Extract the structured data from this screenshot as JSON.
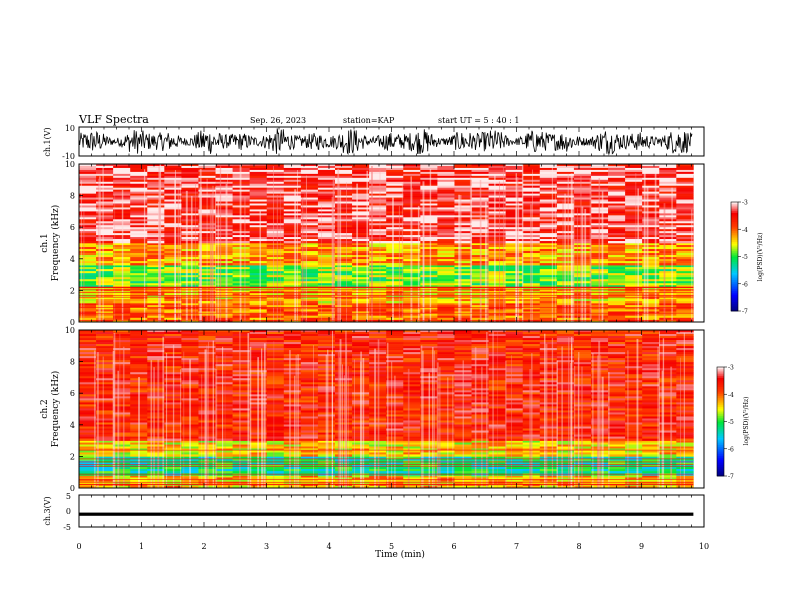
{
  "header": {
    "title": "VLF Spectra",
    "date": "Sep. 26, 2023",
    "station": "station=KAP",
    "start_ut": "start UT =  5 : 40 : 1"
  },
  "chart_data": [
    {
      "type": "line",
      "name": "ch1-waveform",
      "ylabel": "ch.1(V)",
      "ylim": [
        -10,
        10
      ],
      "yticks": [
        "10",
        "-10"
      ],
      "xlim": [
        0,
        9.83
      ],
      "description_values": "dense noisy signal spanning roughly -8 V to 8 V"
    },
    {
      "type": "heatmap",
      "name": "ch1-spectrogram",
      "ylabel": "ch.1",
      "ylabel2": "Frequency (kHz)",
      "ylim": [
        0,
        10
      ],
      "yticks": [
        "0",
        "2",
        "4",
        "6",
        "8",
        "10"
      ],
      "xlim": [
        0,
        9.83
      ],
      "colorbar": {
        "label": "log(PSD)(V²/Hz)",
        "range": [
          -7,
          -3
        ],
        "ticks": [
          "-3",
          "-4",
          "-5",
          "-6",
          "-7"
        ]
      },
      "bands": [
        {
          "from_khz": 0,
          "to_khz": 1.2,
          "level": -4.0
        },
        {
          "from_khz": 1.2,
          "to_khz": 2.2,
          "level": -4.3
        },
        {
          "from_khz": 2.2,
          "to_khz": 3.6,
          "level": -4.8
        },
        {
          "from_khz": 3.6,
          "to_khz": 5.0,
          "level": -4.2
        },
        {
          "from_khz": 5.0,
          "to_khz": 10.0,
          "level": -3.3
        }
      ]
    },
    {
      "type": "heatmap",
      "name": "ch2-spectrogram",
      "ylabel": "ch.2",
      "ylabel2": "Frequency (kHz)",
      "ylim": [
        0,
        10
      ],
      "yticks": [
        "0",
        "2",
        "4",
        "6",
        "8",
        "10"
      ],
      "xlim": [
        0,
        9.83
      ],
      "colorbar": {
        "label": "log(PSD)(V²/Hz)",
        "range": [
          -7,
          -3
        ],
        "ticks": [
          "-3",
          "-4",
          "-5",
          "-6",
          "-7"
        ]
      },
      "bands": [
        {
          "from_khz": 0,
          "to_khz": 0.8,
          "level": -4.3
        },
        {
          "from_khz": 0.8,
          "to_khz": 2.0,
          "level": -5.2
        },
        {
          "from_khz": 2.0,
          "to_khz": 3.0,
          "level": -4.4
        },
        {
          "from_khz": 3.0,
          "to_khz": 10.0,
          "level": -3.6
        }
      ]
    },
    {
      "type": "line",
      "name": "ch3-waveform",
      "ylabel": "ch.3(V)",
      "ylim": [
        -5,
        5
      ],
      "yticks": [
        "5",
        "0",
        "-5"
      ],
      "xlim": [
        0,
        9.83
      ],
      "level_min": -1.5,
      "level_max": -0.5
    }
  ],
  "xaxis": {
    "label": "Time (min)",
    "range": [
      0,
      10
    ],
    "ticks": [
      "0",
      "1",
      "2",
      "3",
      "4",
      "5",
      "6",
      "7",
      "8",
      "9",
      "10"
    ]
  }
}
